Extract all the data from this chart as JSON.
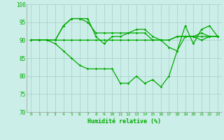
{
  "xlabel": "Humidité relative (%)",
  "bg_color": "#cceee8",
  "grid_color": "#aad4cc",
  "line_color": "#00aa00",
  "ylim": [
    70,
    100
  ],
  "xlim": [
    -0.5,
    23.5
  ],
  "yticks": [
    70,
    75,
    80,
    85,
    90,
    95,
    100
  ],
  "xticks": [
    0,
    1,
    2,
    3,
    4,
    5,
    6,
    7,
    8,
    9,
    10,
    11,
    12,
    13,
    14,
    15,
    16,
    17,
    18,
    19,
    20,
    21,
    22,
    23
  ],
  "series": [
    [
      90,
      90,
      90,
      90,
      94,
      96,
      96,
      96,
      91,
      89,
      91,
      91,
      92,
      92,
      92,
      90,
      90,
      88,
      87,
      94,
      89,
      93,
      94,
      91
    ],
    [
      90,
      90,
      90,
      90,
      94,
      96,
      96,
      95,
      92,
      92,
      92,
      92,
      92,
      93,
      93,
      91,
      90,
      90,
      91,
      91,
      91,
      92,
      91,
      91
    ],
    [
      90,
      90,
      90,
      90,
      90,
      90,
      90,
      90,
      90,
      90,
      90,
      90,
      90,
      90,
      90,
      90,
      90,
      90,
      91,
      91,
      91,
      91,
      91,
      91
    ],
    [
      90,
      90,
      90,
      89,
      87,
      85,
      83,
      82,
      82,
      82,
      82,
      78,
      78,
      80,
      78,
      79,
      77,
      80,
      87,
      91,
      91,
      90,
      91,
      91
    ]
  ]
}
